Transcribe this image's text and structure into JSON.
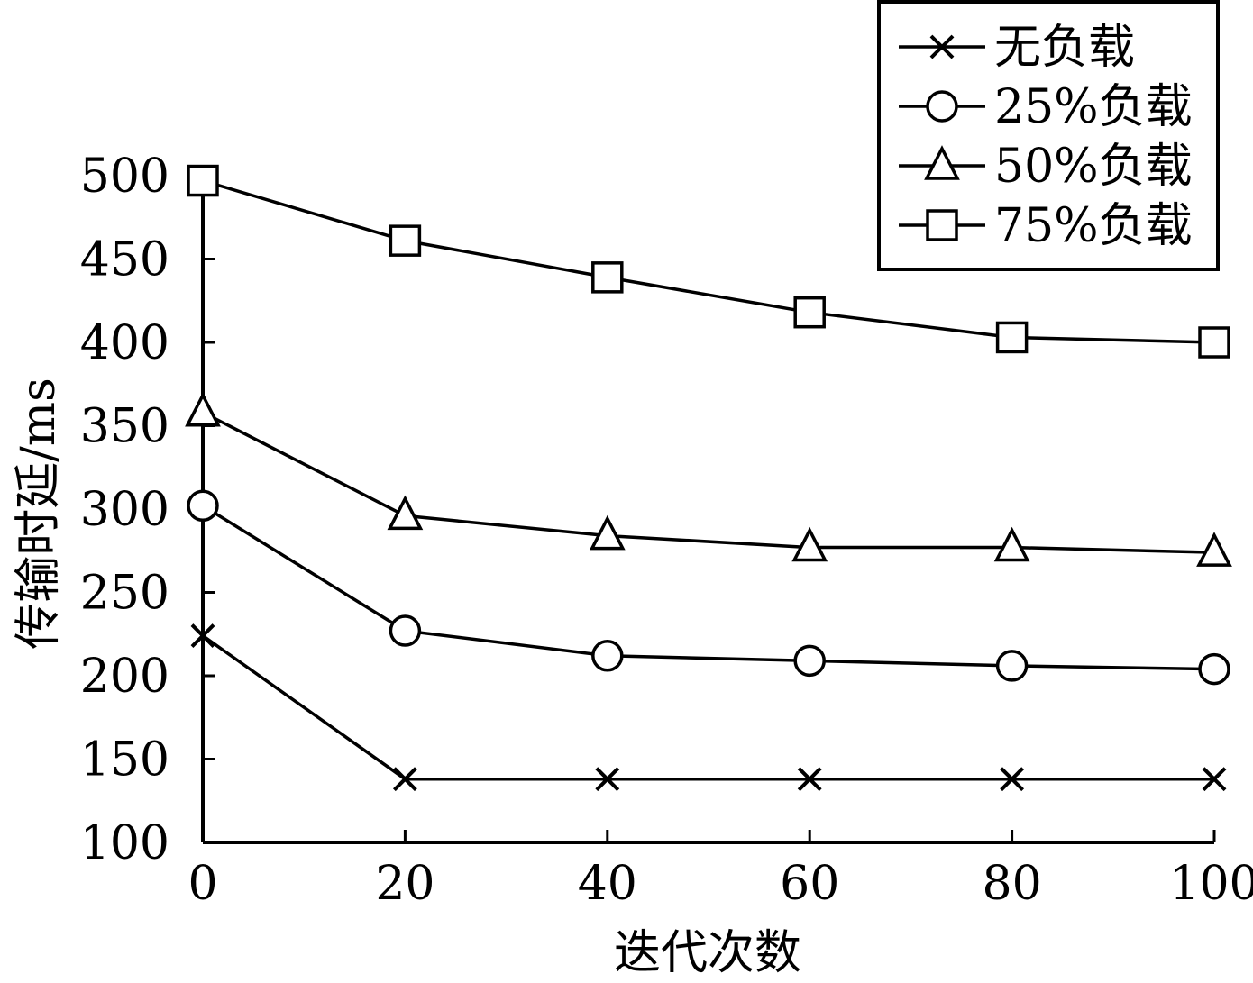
{
  "chart_data": {
    "type": "line",
    "xlabel": "迭代次数",
    "ylabel": "传输时延/ms",
    "xlim": [
      0,
      100
    ],
    "ylim": [
      100,
      500
    ],
    "xticks": [
      0,
      20,
      40,
      60,
      80,
      100
    ],
    "yticks": [
      100,
      150,
      200,
      250,
      300,
      350,
      400,
      450,
      500
    ],
    "x": [
      0,
      20,
      40,
      60,
      80,
      100
    ],
    "grid": false,
    "legend_position": "top-right",
    "series": [
      {
        "name": "无负载",
        "marker": "x",
        "values": [
          224,
          138,
          138,
          138,
          138,
          138
        ]
      },
      {
        "name": "25%负载",
        "marker": "circle",
        "values": [
          302,
          227,
          212,
          209,
          206,
          204
        ]
      },
      {
        "name": "50%负载",
        "marker": "triangle",
        "values": [
          358,
          296,
          284,
          277,
          277,
          274
        ]
      },
      {
        "name": "75%负载",
        "marker": "square",
        "values": [
          497,
          461,
          439,
          418,
          403,
          400
        ]
      }
    ]
  }
}
